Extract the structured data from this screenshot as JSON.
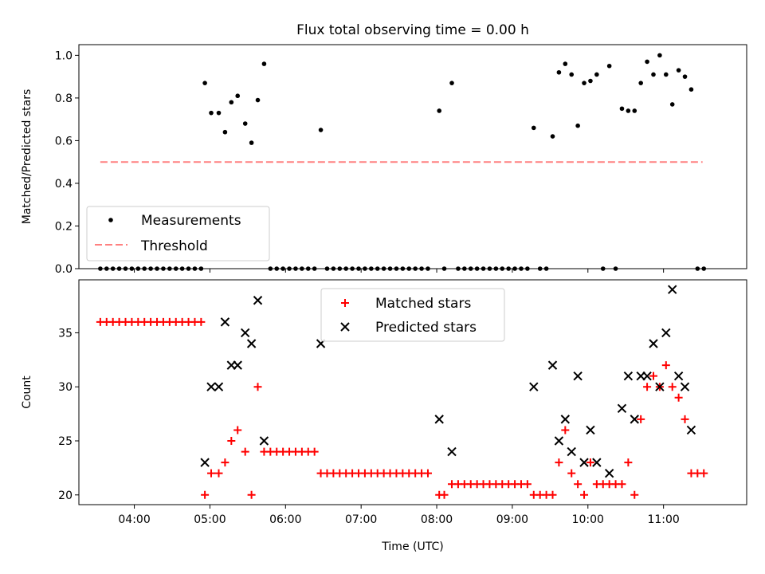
{
  "title": "Flux total observing time = 0.00 h",
  "colors": {
    "measurement": "#000000",
    "threshold": "#ff8080",
    "matched": "#ff0000",
    "predicted": "#000000"
  },
  "chart_data": [
    {
      "type": "scatter",
      "ylabel": "Matched/Predicted stars",
      "xlim": [
        "03:16",
        "12:06"
      ],
      "ylim": [
        0,
        1.05
      ],
      "yticks": [
        0.0,
        0.2,
        0.4,
        0.6,
        0.8,
        1.0
      ],
      "ytick_labels": [
        "0.0",
        "0.2",
        "0.4",
        "0.6",
        "0.8",
        "1.0"
      ],
      "legend": {
        "position": "lower-left",
        "entries": [
          "Measurements",
          "Threshold"
        ]
      },
      "threshold": {
        "name": "Threshold",
        "value": 0.5,
        "x_range": [
          "03:33",
          "11:31"
        ]
      },
      "series": [
        {
          "name": "Measurements",
          "marker": "dot",
          "points": [
            [
              "03:33",
              0
            ],
            [
              "03:38",
              0
            ],
            [
              "03:43",
              0
            ],
            [
              "03:48",
              0
            ],
            [
              "03:53",
              0
            ],
            [
              "03:58",
              0
            ],
            [
              "04:03",
              0
            ],
            [
              "04:08",
              0
            ],
            [
              "04:13",
              0
            ],
            [
              "04:18",
              0
            ],
            [
              "04:23",
              0
            ],
            [
              "04:28",
              0
            ],
            [
              "04:33",
              0
            ],
            [
              "04:38",
              0
            ],
            [
              "04:43",
              0
            ],
            [
              "04:48",
              0
            ],
            [
              "04:53",
              0
            ],
            [
              "04:56",
              0.87
            ],
            [
              "05:01",
              0.73
            ],
            [
              "05:07",
              0.73
            ],
            [
              "05:12",
              0.64
            ],
            [
              "05:17",
              0.78
            ],
            [
              "05:22",
              0.81
            ],
            [
              "05:28",
              0.68
            ],
            [
              "05:33",
              0.59
            ],
            [
              "05:38",
              0.79
            ],
            [
              "05:43",
              0.96
            ],
            [
              "05:48",
              0
            ],
            [
              "05:53",
              0
            ],
            [
              "05:58",
              0
            ],
            [
              "06:03",
              0
            ],
            [
              "06:08",
              0
            ],
            [
              "06:13",
              0
            ],
            [
              "06:18",
              0
            ],
            [
              "06:23",
              0
            ],
            [
              "06:28",
              0.65
            ],
            [
              "06:33",
              0
            ],
            [
              "06:38",
              0
            ],
            [
              "06:43",
              0
            ],
            [
              "06:48",
              0
            ],
            [
              "06:53",
              0
            ],
            [
              "06:58",
              0
            ],
            [
              "07:03",
              0
            ],
            [
              "07:08",
              0
            ],
            [
              "07:13",
              0
            ],
            [
              "07:18",
              0
            ],
            [
              "07:23",
              0
            ],
            [
              "07:28",
              0
            ],
            [
              "07:33",
              0
            ],
            [
              "07:38",
              0
            ],
            [
              "07:43",
              0
            ],
            [
              "07:48",
              0
            ],
            [
              "07:53",
              0
            ],
            [
              "08:02",
              0.74
            ],
            [
              "08:06",
              0
            ],
            [
              "08:12",
              0.87
            ],
            [
              "08:17",
              0
            ],
            [
              "08:22",
              0
            ],
            [
              "08:27",
              0
            ],
            [
              "08:32",
              0
            ],
            [
              "08:37",
              0
            ],
            [
              "08:42",
              0
            ],
            [
              "08:47",
              0
            ],
            [
              "08:52",
              0
            ],
            [
              "08:57",
              0
            ],
            [
              "09:02",
              0
            ],
            [
              "09:07",
              0
            ],
            [
              "09:12",
              0
            ],
            [
              "09:17",
              0.66
            ],
            [
              "09:22",
              0
            ],
            [
              "09:27",
              0
            ],
            [
              "09:32",
              0.62
            ],
            [
              "09:37",
              0.92
            ],
            [
              "09:42",
              0.96
            ],
            [
              "09:47",
              0.91
            ],
            [
              "09:52",
              0.67
            ],
            [
              "09:57",
              0.87
            ],
            [
              "10:02",
              0.88
            ],
            [
              "10:07",
              0.91
            ],
            [
              "10:12",
              0
            ],
            [
              "10:17",
              0.95
            ],
            [
              "10:22",
              0
            ],
            [
              "10:27",
              0.75
            ],
            [
              "10:32",
              0.74
            ],
            [
              "10:37",
              0.74
            ],
            [
              "10:42",
              0.87
            ],
            [
              "10:47",
              0.97
            ],
            [
              "10:52",
              0.91
            ],
            [
              "10:57",
              1.0
            ],
            [
              "11:02",
              0.91
            ],
            [
              "11:07",
              0.77
            ],
            [
              "11:12",
              0.93
            ],
            [
              "11:17",
              0.9
            ],
            [
              "11:22",
              0.84
            ],
            [
              "11:27",
              0
            ],
            [
              "11:32",
              0
            ]
          ]
        }
      ]
    },
    {
      "type": "scatter",
      "xlabel": "Time (UTC)",
      "ylabel": "Count",
      "xlim": [
        "03:16",
        "12:06"
      ],
      "ylim": [
        19.1,
        39.9
      ],
      "xticks": [
        "04:00",
        "05:00",
        "06:00",
        "07:00",
        "08:00",
        "09:00",
        "10:00",
        "11:00"
      ],
      "yticks": [
        20,
        25,
        30,
        35
      ],
      "legend": {
        "position": "top-center",
        "entries": [
          "Matched stars",
          "Predicted stars"
        ]
      },
      "series": [
        {
          "name": "Matched stars",
          "marker": "plus",
          "points": [
            [
              "03:33",
              36
            ],
            [
              "03:38",
              36
            ],
            [
              "03:43",
              36
            ],
            [
              "03:48",
              36
            ],
            [
              "03:53",
              36
            ],
            [
              "03:58",
              36
            ],
            [
              "04:03",
              36
            ],
            [
              "04:08",
              36
            ],
            [
              "04:13",
              36
            ],
            [
              "04:18",
              36
            ],
            [
              "04:23",
              36
            ],
            [
              "04:28",
              36
            ],
            [
              "04:33",
              36
            ],
            [
              "04:38",
              36
            ],
            [
              "04:43",
              36
            ],
            [
              "04:48",
              36
            ],
            [
              "04:53",
              36
            ],
            [
              "04:56",
              20
            ],
            [
              "05:01",
              22
            ],
            [
              "05:07",
              22
            ],
            [
              "05:12",
              23
            ],
            [
              "05:17",
              25
            ],
            [
              "05:22",
              26
            ],
            [
              "05:28",
              24
            ],
            [
              "05:33",
              20
            ],
            [
              "05:38",
              30
            ],
            [
              "05:43",
              24
            ],
            [
              "05:48",
              24
            ],
            [
              "05:53",
              24
            ],
            [
              "05:58",
              24
            ],
            [
              "06:03",
              24
            ],
            [
              "06:08",
              24
            ],
            [
              "06:13",
              24
            ],
            [
              "06:18",
              24
            ],
            [
              "06:23",
              24
            ],
            [
              "06:28",
              22
            ],
            [
              "06:33",
              22
            ],
            [
              "06:38",
              22
            ],
            [
              "06:43",
              22
            ],
            [
              "06:48",
              22
            ],
            [
              "06:53",
              22
            ],
            [
              "06:58",
              22
            ],
            [
              "07:03",
              22
            ],
            [
              "07:08",
              22
            ],
            [
              "07:13",
              22
            ],
            [
              "07:18",
              22
            ],
            [
              "07:23",
              22
            ],
            [
              "07:28",
              22
            ],
            [
              "07:33",
              22
            ],
            [
              "07:38",
              22
            ],
            [
              "07:43",
              22
            ],
            [
              "07:48",
              22
            ],
            [
              "07:53",
              22
            ],
            [
              "08:02",
              20
            ],
            [
              "08:06",
              20
            ],
            [
              "08:12",
              21
            ],
            [
              "08:17",
              21
            ],
            [
              "08:22",
              21
            ],
            [
              "08:27",
              21
            ],
            [
              "08:32",
              21
            ],
            [
              "08:37",
              21
            ],
            [
              "08:42",
              21
            ],
            [
              "08:47",
              21
            ],
            [
              "08:52",
              21
            ],
            [
              "08:57",
              21
            ],
            [
              "09:02",
              21
            ],
            [
              "09:07",
              21
            ],
            [
              "09:12",
              21
            ],
            [
              "09:17",
              20
            ],
            [
              "09:22",
              20
            ],
            [
              "09:27",
              20
            ],
            [
              "09:32",
              20
            ],
            [
              "09:37",
              23
            ],
            [
              "09:42",
              26
            ],
            [
              "09:47",
              22
            ],
            [
              "09:52",
              21
            ],
            [
              "09:57",
              20
            ],
            [
              "10:02",
              23
            ],
            [
              "10:07",
              21
            ],
            [
              "10:12",
              21
            ],
            [
              "10:17",
              21
            ],
            [
              "10:22",
              21
            ],
            [
              "10:27",
              21
            ],
            [
              "10:32",
              23
            ],
            [
              "10:37",
              20
            ],
            [
              "10:42",
              27
            ],
            [
              "10:47",
              30
            ],
            [
              "10:52",
              31
            ],
            [
              "10:57",
              30
            ],
            [
              "11:02",
              32
            ],
            [
              "11:07",
              30
            ],
            [
              "11:12",
              29
            ],
            [
              "11:17",
              27
            ],
            [
              "11:22",
              22
            ],
            [
              "11:27",
              22
            ],
            [
              "11:32",
              22
            ]
          ]
        },
        {
          "name": "Predicted stars",
          "marker": "x",
          "points": [
            [
              "04:56",
              23
            ],
            [
              "05:01",
              30
            ],
            [
              "05:07",
              30
            ],
            [
              "05:12",
              36
            ],
            [
              "05:17",
              32
            ],
            [
              "05:22",
              32
            ],
            [
              "05:28",
              35
            ],
            [
              "05:33",
              34
            ],
            [
              "05:38",
              38
            ],
            [
              "05:43",
              25
            ],
            [
              "06:28",
              34
            ],
            [
              "08:02",
              27
            ],
            [
              "08:12",
              24
            ],
            [
              "09:17",
              30
            ],
            [
              "09:32",
              32
            ],
            [
              "09:37",
              25
            ],
            [
              "09:42",
              27
            ],
            [
              "09:47",
              24
            ],
            [
              "09:52",
              31
            ],
            [
              "09:57",
              23
            ],
            [
              "10:02",
              26
            ],
            [
              "10:07",
              23
            ],
            [
              "10:17",
              22
            ],
            [
              "10:27",
              28
            ],
            [
              "10:32",
              31
            ],
            [
              "10:37",
              27
            ],
            [
              "10:42",
              31
            ],
            [
              "10:47",
              31
            ],
            [
              "10:52",
              34
            ],
            [
              "10:57",
              30
            ],
            [
              "11:02",
              35
            ],
            [
              "11:07",
              39
            ],
            [
              "11:12",
              31
            ],
            [
              "11:17",
              30
            ],
            [
              "11:22",
              26
            ]
          ]
        }
      ]
    }
  ]
}
